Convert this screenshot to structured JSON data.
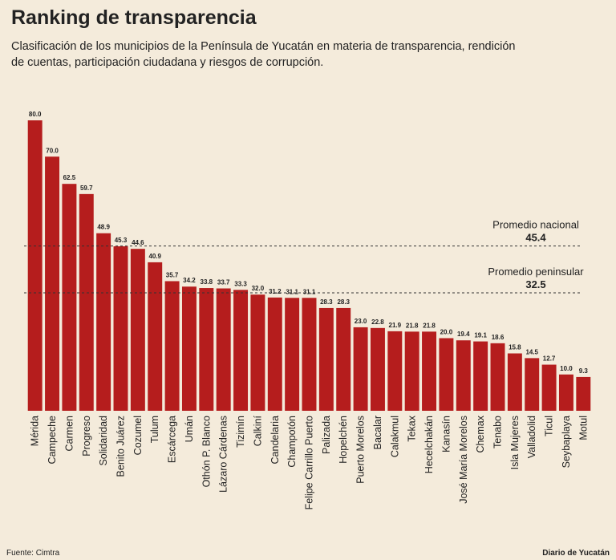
{
  "chart_data": {
    "type": "bar",
    "title": "Ranking de transparencia",
    "subtitle": [
      "Clasificación de los municipios  de la Península de Yucatán en materia de transparencia, rendición",
      "de cuentas, participación ciudadana y riesgos de corrupción."
    ],
    "categories": [
      "Mérida",
      "Campeche",
      "Carmen",
      "Progreso",
      "Solidaridad",
      "Benito Juárez",
      "Cozumel",
      "Tulum",
      "Escárcega",
      "Umán",
      "Othón P. Blanco",
      "Lázaro Cárdenas",
      "Tizimín",
      "Calkiní",
      "Candelaria",
      "Champotón",
      "Felipe Carrillo Puerto",
      "Palizada",
      "Hopelchén",
      "Puerto Morelos",
      "Bacalar",
      "Calakmul",
      "Tekax",
      "Hecelchakán",
      "Kanasín",
      "José María Morelos",
      "Chemax",
      "Tenabo",
      "Isla Mujeres",
      "Valladolid",
      "Ticul",
      "Seybaplaya",
      "Motul"
    ],
    "values": [
      80,
      70,
      62.5,
      59.7,
      48.9,
      45.3,
      44.6,
      40.9,
      35.7,
      34.2,
      33.8,
      33.7,
      33.3,
      32,
      31.2,
      31.1,
      31.1,
      28.3,
      28.3,
      23,
      22.8,
      21.9,
      21.8,
      21.8,
      20,
      19.4,
      19.1,
      18.6,
      15.8,
      14.5,
      12.7,
      10,
      9.3
    ],
    "value_labels": [
      "80.0",
      "70.0",
      "62.5",
      "59.7",
      "48.9",
      "45.3",
      "44.6",
      "40.9",
      "35.7",
      "34.2",
      "33.8",
      "33.7",
      "33.3",
      "32.0",
      "31.2",
      "31.1",
      "31.1",
      "28.3",
      "28.3",
      "23.0",
      "22.8",
      "21.9",
      "21.8",
      "21.8",
      "20.0",
      "19.4",
      "19.1",
      "18.6",
      "15.8",
      "14.5",
      "12.7",
      "10.0",
      "9.3"
    ],
    "color": "#b51d1d",
    "reference_lines": [
      {
        "label": "Promedio nacional",
        "value": 45.4
      },
      {
        "label": "Promedio peninsular",
        "value": 32.5
      }
    ],
    "source": "Fuente: Cimtra",
    "credit": "Diario de Yucatán"
  }
}
